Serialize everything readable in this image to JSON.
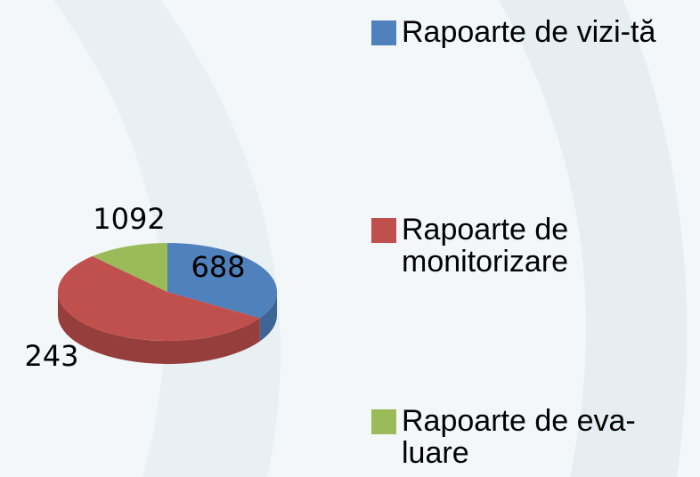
{
  "chart_data": {
    "type": "pie",
    "series": [
      {
        "name": "Rapoarte de vizi-tă",
        "color": "#4f81bd"
      },
      {
        "name": "Rapoarte de monitorizare",
        "color": "#c0504d"
      },
      {
        "name": "Rapoarte de eva-luare",
        "color": "#9bbb59"
      }
    ],
    "values": [
      688,
      1092,
      243
    ],
    "legend": "right"
  }
}
